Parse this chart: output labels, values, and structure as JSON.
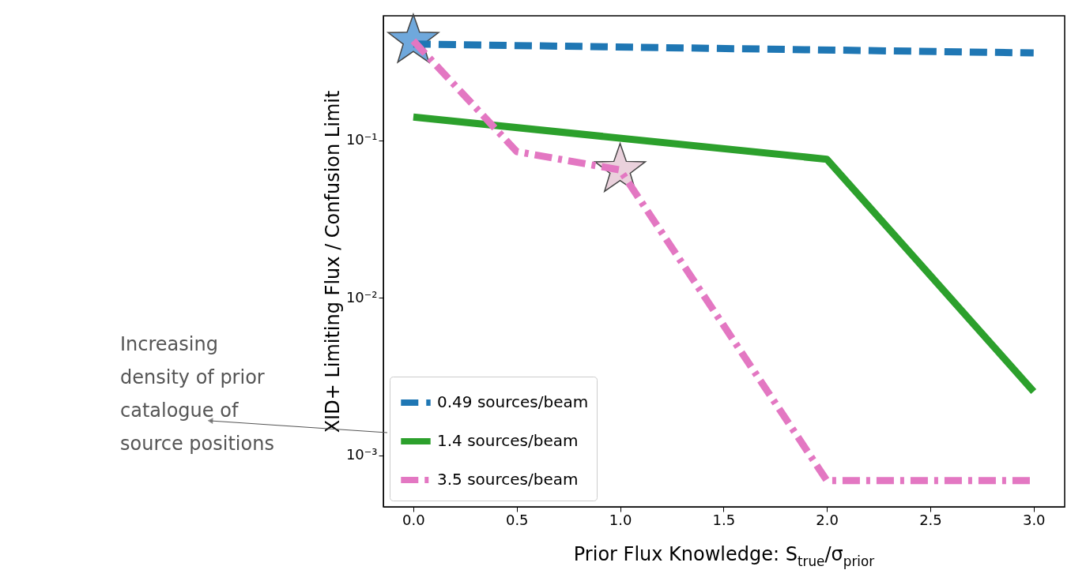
{
  "chart_data": {
    "type": "line",
    "xlabel": "Prior Flux Knowledge: S$_{true}$/σ$_{prior}$",
    "ylabel": "XID+ Limiting Flux / Confusion Limit",
    "log": "y",
    "grid": false,
    "legend": "bottom left",
    "xlim": [
      -0.145,
      3.15
    ],
    "xticks": [
      {
        "value": 0,
        "label": "0.0"
      },
      0.5,
      {
        "value": 1,
        "label": "1.0"
      },
      1.5,
      {
        "value": 2,
        "label": "2.0"
      },
      2.5,
      {
        "value": 3,
        "label": "3.0"
      }
    ],
    "ylim": [
      0.00047,
      0.62
    ],
    "yticks": [
      {
        "value": 0.1,
        "label": "10⁻¹"
      },
      {
        "value": 0.01,
        "label": "10⁻²"
      },
      {
        "value": 0.001,
        "label": "10⁻³"
      }
    ],
    "series": [
      {
        "name": "0.49 sources/beam",
        "color": "#1f77b4",
        "line_style": "dashed",
        "x": [
          0,
          3
        ],
        "values": [
          0.41,
          0.36
        ]
      },
      {
        "name": "1.4 sources/beam",
        "color": "#2ca02c",
        "line_style": "solid",
        "x": [
          0,
          2,
          3
        ],
        "values": [
          0.141,
          0.076,
          0.00254
        ]
      },
      {
        "name": "3.5 sources/beam",
        "color": "#e377c2",
        "line_style": "dashdot",
        "x": [
          0,
          0.5,
          1,
          2,
          3
        ],
        "values": [
          0.43,
          0.085,
          0.065,
          0.00069,
          0.00069
        ]
      },
      {
        "type": "scatter",
        "marker": "star",
        "color": "#6fa8dc",
        "x": [
          0
        ],
        "values": [
          0.43
        ]
      },
      {
        "type": "scatter",
        "marker": "star",
        "color": "#ead1dc",
        "x": [
          1
        ],
        "values": [
          0.065
        ]
      }
    ],
    "annotations": [
      "Increasing density of prior catalogue of source positions"
    ]
  }
}
